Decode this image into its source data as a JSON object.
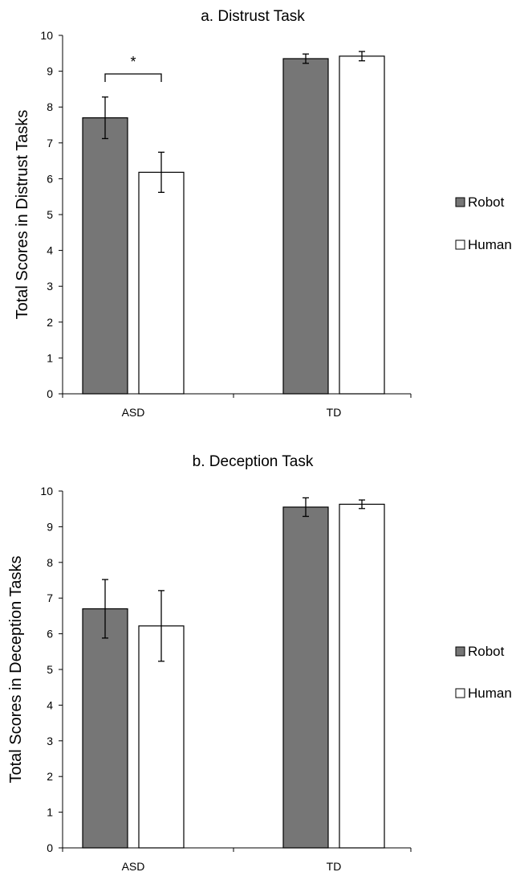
{
  "chart_data": [
    {
      "type": "bar",
      "title": "a. Distrust Task",
      "xlabel": "",
      "ylabel": "Total Scores in Distrust Tasks",
      "categories": [
        "ASD",
        "TD"
      ],
      "series": [
        {
          "name": "Robot",
          "values": [
            7.7,
            9.35
          ],
          "errors": [
            0.58,
            0.13
          ],
          "color": "#767676"
        },
        {
          "name": "Human",
          "values": [
            6.18,
            9.42
          ],
          "errors": [
            0.56,
            0.13
          ],
          "color": "#ffffff"
        }
      ],
      "ylim": [
        0,
        10
      ],
      "yticks": [
        "0",
        "1",
        "2",
        "3",
        "4",
        "5",
        "6",
        "7",
        "8",
        "9",
        "10"
      ],
      "grid": false,
      "legend_position": "right",
      "annotations": [
        {
          "text": "*",
          "category": "ASD",
          "between": [
            "Robot",
            "Human"
          ]
        }
      ]
    },
    {
      "type": "bar",
      "title": "b. Deception Task",
      "xlabel": "",
      "ylabel": "Total Scores in Deception Tasks",
      "categories": [
        "ASD",
        "TD"
      ],
      "series": [
        {
          "name": "Robot",
          "values": [
            6.7,
            9.55
          ],
          "errors": [
            0.82,
            0.26
          ],
          "color": "#767676"
        },
        {
          "name": "Human",
          "values": [
            6.22,
            9.63
          ],
          "errors": [
            0.99,
            0.12
          ],
          "color": "#ffffff"
        }
      ],
      "ylim": [
        0,
        10
      ],
      "yticks": [
        "0",
        "1",
        "2",
        "3",
        "4",
        "5",
        "6",
        "7",
        "8",
        "9",
        "10"
      ],
      "grid": false,
      "legend_position": "right",
      "annotations": []
    }
  ]
}
